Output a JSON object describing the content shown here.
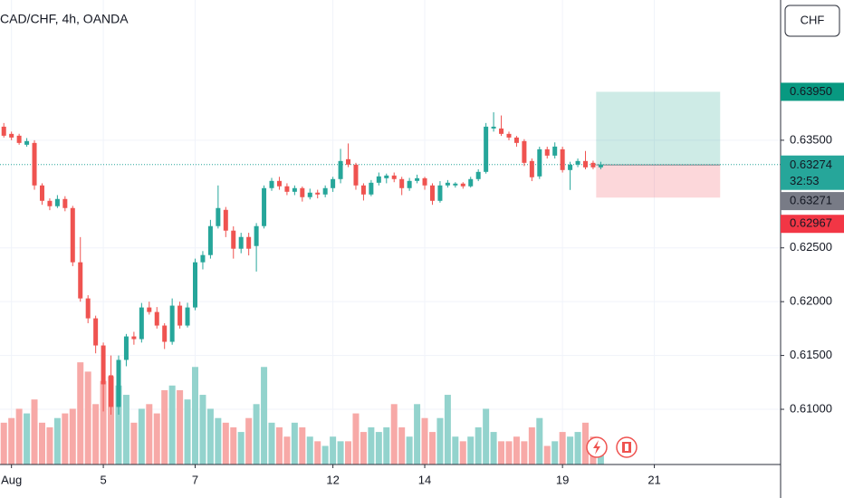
{
  "chart_data": {
    "type": "candlestick",
    "title": "CAD/CHF, 4h, OANDA",
    "currency": "CHF",
    "up_color": "#26a69a",
    "down_color": "#ef5350",
    "up_volume_color": "#93d3cd",
    "down_volume_color": "#f7a9a7",
    "grid": true,
    "x": [
      0,
      1,
      2,
      3,
      4,
      5,
      6,
      7,
      8,
      9,
      10,
      11,
      12,
      13,
      14,
      15,
      16,
      17,
      18,
      19,
      20,
      21,
      22,
      23,
      24,
      25,
      26,
      27,
      28,
      29,
      30,
      31,
      32,
      33,
      34,
      35,
      36,
      37,
      38,
      39,
      40,
      41,
      42,
      43,
      44,
      45,
      46,
      47,
      48,
      49,
      50,
      51,
      52,
      53,
      54,
      55,
      56,
      57,
      58,
      59,
      60,
      61,
      62,
      63,
      64,
      65,
      66,
      67,
      68,
      69,
      70,
      71,
      72,
      73,
      74,
      75,
      76,
      77,
      78
    ],
    "open": [
      0.63626,
      0.63559,
      0.63542,
      0.63458,
      0.63475,
      0.6308,
      0.62937,
      0.62887,
      0.62954,
      0.6287,
      0.62366,
      0.6203,
      0.61845,
      0.61593,
      0.61316,
      0.61022,
      0.61459,
      0.61677,
      0.61652,
      0.61946,
      0.61904,
      0.61778,
      0.61627,
      0.61963,
      0.61778,
      0.61946,
      0.62366,
      0.62433,
      0.62702,
      0.62853,
      0.6266,
      0.62492,
      0.62601,
      0.62517,
      0.62702,
      0.63055,
      0.63122,
      0.63072,
      0.63021,
      0.63055,
      0.62971,
      0.63013,
      0.62996,
      0.63055,
      0.63139,
      0.63324,
      0.63273,
      0.6308,
      0.62996,
      0.63105,
      0.63147,
      0.63172,
      0.63139,
      0.63055,
      0.63122,
      0.63147,
      0.6308,
      0.62937,
      0.6308,
      0.6308,
      0.63097,
      0.63072,
      0.63139,
      0.63206,
      0.63609,
      0.63609,
      0.63559,
      0.63525,
      0.63492,
      0.63307,
      0.63164,
      0.63416,
      0.63357,
      0.63416,
      0.63223,
      0.63273,
      0.63307,
      0.6329,
      0.63248
    ],
    "high": [
      0.6366,
      0.6358,
      0.6356,
      0.6352,
      0.635,
      0.631,
      0.6296,
      0.6299,
      0.6298,
      0.6289,
      0.626,
      0.6206,
      0.6187,
      0.6162,
      0.615,
      0.615,
      0.617,
      0.6172,
      0.61988,
      0.62,
      0.6195,
      0.618,
      0.6203,
      0.62,
      0.6199,
      0.624,
      0.6247,
      0.6276,
      0.6308,
      0.6288,
      0.627,
      0.6264,
      0.6264,
      0.6273,
      0.6308,
      0.6315,
      0.6316,
      0.631,
      0.6308,
      0.6307,
      0.6305,
      0.6304,
      0.6308,
      0.6316,
      0.6342,
      0.6347,
      0.6329,
      0.631,
      0.6313,
      0.632,
      0.6319,
      0.632,
      0.6316,
      0.6315,
      0.6318,
      0.6316,
      0.631,
      0.6312,
      0.6313,
      0.6311,
      0.6311,
      0.6316,
      0.6323,
      0.6366,
      0.6376,
      0.6373,
      0.6358,
      0.6354,
      0.6351,
      0.6333,
      0.6344,
      0.6344,
      0.6348,
      0.6344,
      0.633,
      0.6333,
      0.634,
      0.6331,
      0.633
    ],
    "low": [
      0.63525,
      0.635,
      0.63458,
      0.6344,
      0.6304,
      0.629,
      0.6285,
      0.6287,
      0.6284,
      0.6233,
      0.62,
      0.618,
      0.6152,
      0.6098,
      0.6095,
      0.6095,
      0.614,
      0.616,
      0.6162,
      0.6188,
      0.6175,
      0.6156,
      0.616,
      0.6175,
      0.6176,
      0.6192,
      0.623,
      0.624,
      0.6268,
      0.626,
      0.624,
      0.6245,
      0.6243,
      0.6228,
      0.6268,
      0.6303,
      0.6304,
      0.6299,
      0.6299,
      0.6293,
      0.6295,
      0.6296,
      0.6297,
      0.6302,
      0.631,
      0.6325,
      0.6304,
      0.6294,
      0.6298,
      0.6308,
      0.631,
      0.6311,
      0.6299,
      0.6303,
      0.631,
      0.6304,
      0.629,
      0.6292,
      0.6306,
      0.6306,
      0.6305,
      0.6306,
      0.6312,
      0.6319,
      0.6358,
      0.6354,
      0.635,
      0.6344,
      0.6326,
      0.6312,
      0.6314,
      0.6333,
      0.6333,
      0.632,
      0.63038,
      0.6325,
      0.6323,
      0.6323,
      0.6323
    ],
    "close": [
      0.63542,
      0.63525,
      0.63475,
      0.63492,
      0.6308,
      0.62937,
      0.62887,
      0.62954,
      0.6287,
      0.62366,
      0.6203,
      0.61845,
      0.61593,
      0.61232,
      0.61022,
      0.61459,
      0.61677,
      0.61652,
      0.61946,
      0.61904,
      0.61778,
      0.61627,
      0.61963,
      0.61778,
      0.61946,
      0.62366,
      0.62433,
      0.62702,
      0.6287,
      0.6266,
      0.62492,
      0.62601,
      0.62492,
      0.62702,
      0.63055,
      0.63122,
      0.63072,
      0.63021,
      0.63055,
      0.62971,
      0.63013,
      0.62996,
      0.63055,
      0.63139,
      0.63307,
      0.63273,
      0.6308,
      0.62996,
      0.63105,
      0.63164,
      0.63172,
      0.63139,
      0.63055,
      0.63122,
      0.63147,
      0.6308,
      0.62937,
      0.6308,
      0.63105,
      0.63097,
      0.63072,
      0.63139,
      0.63206,
      0.63626,
      0.63626,
      0.63559,
      0.63525,
      0.63475,
      0.6329,
      0.63156,
      0.63416,
      0.63357,
      0.63441,
      0.63223,
      0.63273,
      0.63307,
      0.63248,
      0.63248,
      0.63274
    ],
    "volume": [
      45,
      50,
      60,
      55,
      70,
      45,
      40,
      50,
      55,
      60,
      110,
      100,
      65,
      90,
      95,
      85,
      75,
      45,
      60,
      65,
      55,
      80,
      85,
      80,
      70,
      105,
      75,
      60,
      50,
      45,
      40,
      35,
      50,
      65,
      105,
      45,
      40,
      30,
      45,
      40,
      30,
      25,
      20,
      30,
      25,
      25,
      55,
      35,
      40,
      35,
      40,
      65,
      40,
      30,
      65,
      50,
      35,
      50,
      75,
      30,
      25,
      30,
      40,
      60,
      35,
      25,
      25,
      30,
      25,
      40,
      50,
      20,
      25,
      35,
      30,
      35,
      45,
      30,
      10
    ],
    "vlim": [
      0,
      500
    ],
    "xlim": [
      -0.5,
      101.5
    ],
    "xticks": [
      {
        "value": 1,
        "label": "Aug"
      },
      {
        "value": 13,
        "label": "5"
      },
      {
        "value": 25,
        "label": "7"
      },
      {
        "value": 43,
        "label": "12"
      },
      {
        "value": 55,
        "label": "14"
      },
      {
        "value": 73,
        "label": "19"
      },
      {
        "value": 85,
        "label": "21"
      }
    ],
    "ylim": [
      0.60487,
      0.64803
    ],
    "yticks": [
      {
        "value": 0.635,
        "label": "0.63500"
      },
      {
        "value": 0.625,
        "label": "0.62500"
      },
      {
        "value": 0.62,
        "label": "0.62000"
      },
      {
        "value": 0.615,
        "label": "0.61500"
      },
      {
        "value": 0.61,
        "label": "0.61000"
      }
    ],
    "position": {
      "target": {
        "value": 0.6395,
        "label": "0.63950"
      },
      "entry": {
        "value": 0.63271,
        "label": "0.63271"
      },
      "stop": {
        "value": 0.62967,
        "label": "0.62967"
      },
      "xlim": [
        77.4,
        93.6
      ]
    },
    "last_price": {
      "value": 0.63274,
      "label": "0.63274",
      "countdown": "32:53"
    }
  }
}
